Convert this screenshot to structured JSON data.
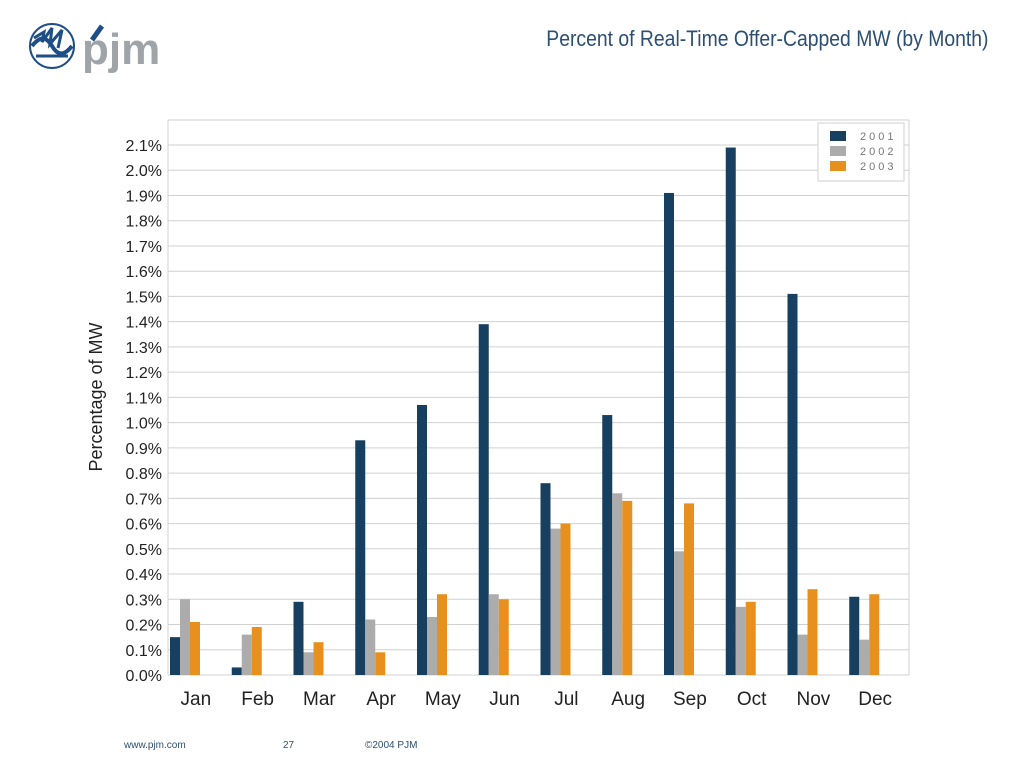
{
  "slide": {
    "title": "Percent of Real-Time Offer-Capped MW (by Month)",
    "logo_text": "pjm",
    "footer_url": "www.pjm.com",
    "page_number": "27",
    "copyright": "©2004 PJM"
  },
  "colors": {
    "title": "#2d4f73",
    "logo_blue": "#1e4e86",
    "logo_gray": "#9fa4a8",
    "grid": "#d0d0d0"
  },
  "chart_data": {
    "type": "bar",
    "title": "",
    "xlabel": "",
    "ylabel": "Percentage  of  MW",
    "categories": [
      "Jan",
      "Feb",
      "Mar",
      "Apr",
      "May",
      "Jun",
      "Jul",
      "Aug",
      "Sep",
      "Oct",
      "Nov",
      "Dec"
    ],
    "ylim": [
      0,
      2.1
    ],
    "yticks": [
      "0.0%",
      "0.1%",
      "0.2%",
      "0.3%",
      "0.4%",
      "0.5%",
      "0.6%",
      "0.7%",
      "0.8%",
      "0.9%",
      "1.0%",
      "1.1%",
      "1.2%",
      "1.3%",
      "1.4%",
      "1.5%",
      "1.6%",
      "1.7%",
      "1.8%",
      "1.9%",
      "2.0%",
      "2.1%"
    ],
    "grid": true,
    "legend_position": "top-right",
    "series": [
      {
        "name": "2001",
        "color": "#173f5f",
        "values": [
          0.15,
          0.03,
          0.29,
          0.93,
          1.07,
          1.39,
          0.76,
          1.03,
          1.91,
          2.09,
          1.51,
          0.31
        ]
      },
      {
        "name": "2002",
        "color": "#acacac",
        "values": [
          0.3,
          0.16,
          0.09,
          0.22,
          0.23,
          0.32,
          0.58,
          0.72,
          0.49,
          0.27,
          0.16,
          0.14
        ]
      },
      {
        "name": "2003",
        "color": "#e8901e",
        "values": [
          0.21,
          0.19,
          0.13,
          0.09,
          0.32,
          0.3,
          0.6,
          0.69,
          0.68,
          0.29,
          0.34,
          0.32
        ]
      }
    ]
  }
}
